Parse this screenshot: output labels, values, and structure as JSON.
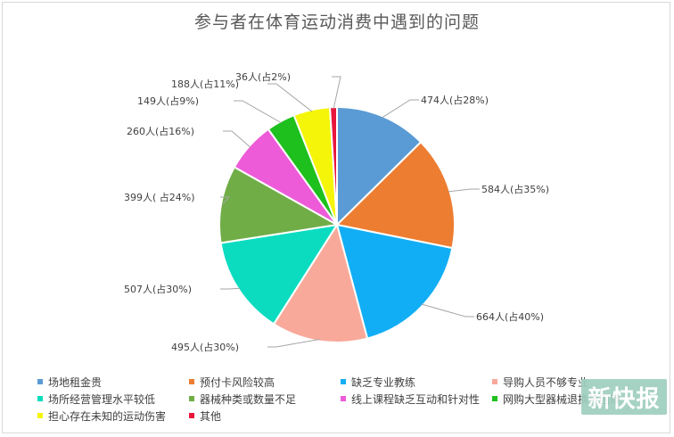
{
  "chart_data": {
    "type": "pie",
    "title": "参与者在体育运动消费中遇到的问题",
    "legend_position": "bottom",
    "slices": [
      {
        "label": "场地租金贵",
        "value": 474,
        "data_label": "474人(占28%)",
        "color": "#5b9bd5"
      },
      {
        "label": "预付卡风险较高",
        "value": 584,
        "data_label": "584人(占35%)",
        "color": "#ed7d31"
      },
      {
        "label": "缺乏专业教练",
        "value": 664,
        "data_label": "664人(占40%)",
        "color": "#12aef5"
      },
      {
        "label": "导购人员不够专业",
        "value": 495,
        "data_label": "495人(占30%)",
        "color": "#f8a99a"
      },
      {
        "label": "场所经营管理水平较低",
        "value": 507,
        "data_label": "507人(占30%)",
        "color": "#0bdcc0"
      },
      {
        "label": "器械种类或数量不足",
        "value": 399,
        "data_label": "399人( 占24%)",
        "color": "#70ad47"
      },
      {
        "label": "线上课程缺乏互动和针对性",
        "value": 260,
        "data_label": "260人(占16%)",
        "color": "#ed5bd8"
      },
      {
        "label": "网购大型器械退换货困难",
        "value": 149,
        "data_label": "149人(占9%)",
        "color": "#1dc01d"
      },
      {
        "label": "担心存在未知的运动伤害",
        "value": 188,
        "data_label": "188人(占11%)",
        "color": "#f5f50a"
      },
      {
        "label": "其他",
        "value": 36,
        "data_label": "36人(占2%)",
        "color": "#e8163c"
      }
    ]
  },
  "watermark": "新快报"
}
